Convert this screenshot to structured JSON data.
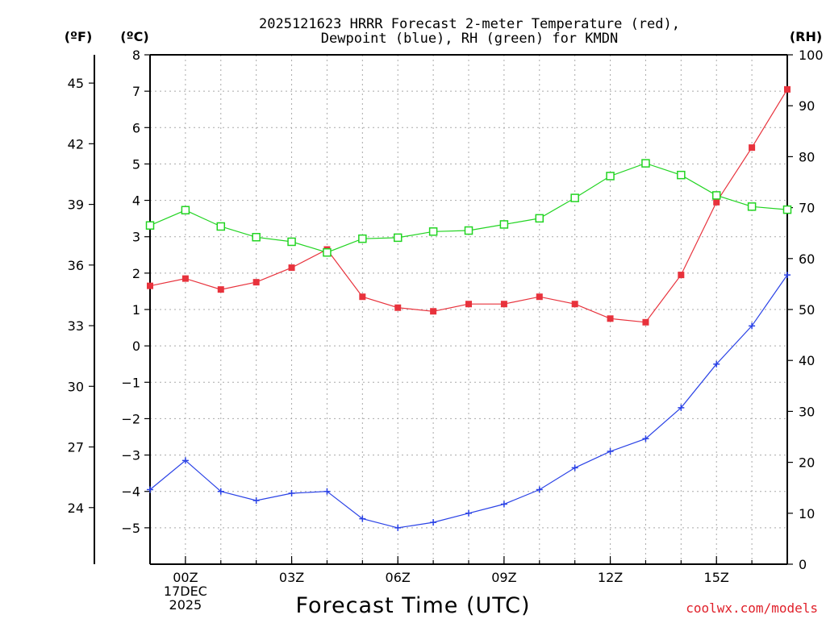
{
  "chart_data": {
    "type": "line",
    "title": "2025121623 HRRR Forecast 2-meter Temperature (red),",
    "subtitle": "Dewpoint (blue), RH (green) for KMDN",
    "xlabel": "Forecast Time (UTC)",
    "credit": "coolwx.com/models",
    "units": {
      "left_outer": "(ºF)",
      "left_inner": "(ºC)",
      "right": "(RH)"
    },
    "x": [
      -1,
      0,
      1,
      2,
      3,
      4,
      5,
      6,
      7,
      8,
      9,
      10,
      11,
      12,
      13,
      14,
      15,
      16,
      17
    ],
    "xlim": [
      -1,
      17
    ],
    "xticks": [
      {
        "x": 0,
        "lines": [
          "00Z",
          "17DEC",
          "2025"
        ]
      },
      {
        "x": 3,
        "lines": [
          "03Z"
        ]
      },
      {
        "x": 6,
        "lines": [
          "06Z"
        ]
      },
      {
        "x": 9,
        "lines": [
          "09Z"
        ]
      },
      {
        "x": 12,
        "lines": [
          "12Z"
        ]
      },
      {
        "x": 15,
        "lines": [
          "15Z"
        ]
      }
    ],
    "ylim_c": [
      -6,
      8
    ],
    "yticks_c": [
      "8",
      "7",
      "6",
      "5",
      "4",
      "3",
      "2",
      "1",
      "0",
      "−1",
      "−2",
      "−3",
      "−4",
      "−5"
    ],
    "yticks_c_values": [
      8,
      7,
      6,
      5,
      4,
      3,
      2,
      1,
      0,
      -1,
      -2,
      -3,
      -4,
      -5
    ],
    "yticks_f": [
      "45",
      "42",
      "39",
      "36",
      "33",
      "30",
      "27",
      "24"
    ],
    "yticks_f_values": [
      45,
      42,
      39,
      36,
      33,
      30,
      27,
      24
    ],
    "ylim_rh": [
      0,
      100
    ],
    "yticks_rh": [
      "100",
      "90",
      "80",
      "70",
      "60",
      "50",
      "40",
      "30",
      "20",
      "10",
      "0"
    ],
    "yticks_rh_values": [
      100,
      90,
      80,
      70,
      60,
      50,
      40,
      30,
      20,
      10,
      0
    ],
    "series": [
      {
        "name": "Temperature",
        "axis": "c",
        "color": "#e8323c",
        "marker": "filled-square",
        "values": [
          1.65,
          1.85,
          1.55,
          1.75,
          2.15,
          2.65,
          1.35,
          1.05,
          0.95,
          1.15,
          1.15,
          1.35,
          1.15,
          0.75,
          0.65,
          1.95,
          3.95,
          5.45,
          7.05
        ]
      },
      {
        "name": "Dewpoint",
        "axis": "c",
        "color": "#2a42e6",
        "marker": "plus",
        "values": [
          -3.95,
          -3.15,
          -4.0,
          -4.25,
          -4.05,
          -4.0,
          -4.75,
          -5.0,
          -4.85,
          -4.6,
          -4.35,
          -3.95,
          -3.35,
          -2.9,
          -2.55,
          -1.7,
          -0.5,
          0.55,
          1.95
        ]
      },
      {
        "name": "RH",
        "axis": "rh",
        "color": "#22d422",
        "marker": "open-square",
        "values": [
          66.5,
          69.5,
          66.3,
          64.2,
          63.3,
          61.2,
          63.9,
          64.1,
          65.3,
          65.5,
          66.7,
          67.9,
          71.9,
          76.2,
          78.7,
          76.4,
          72.4,
          70.2,
          69.6
        ]
      }
    ]
  }
}
